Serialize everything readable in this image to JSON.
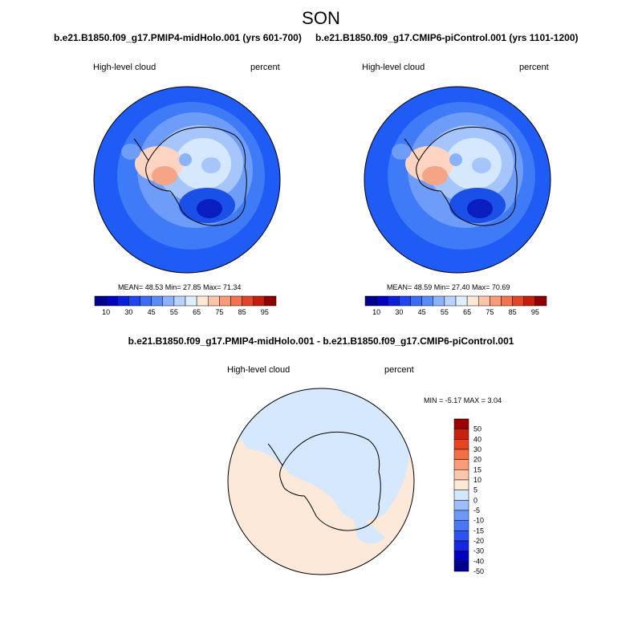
{
  "figure": {
    "season": "SON",
    "panels": [
      {
        "title": "b.e21.B1850.f09_g17.PMIP4-midHolo.001 (yrs 601-700)",
        "variable": "High-level cloud",
        "units": "percent",
        "stats": "MEAN=  48.53  Min=  27.85  Max=  71.34"
      },
      {
        "title": "b.e21.B1850.f09_g17.CMIP6-piControl.001 (yrs 1101-1200)",
        "variable": "High-level cloud",
        "units": "percent",
        "stats": "MEAN=  48.59  Min=  27.40  Max=  70.69"
      }
    ],
    "diff": {
      "title": "b.e21.B1850.f09_g17.PMIP4-midHolo.001 - b.e21.B1850.f09_g17.CMIP6-piControl.001",
      "variable": "High-level cloud",
      "units": "percent",
      "stats": "MIN =  -5.17 MAX =   3.04"
    },
    "abs_colorbar": {
      "colors": [
        "#00008f",
        "#0000c0",
        "#0a1ee0",
        "#1f45f0",
        "#3b6cf7",
        "#5a8cf9",
        "#8cb2fb",
        "#b9d3fc",
        "#e0efff",
        "#ffe8d8",
        "#fcc5aa",
        "#f99b79",
        "#f3724f",
        "#e34627",
        "#c41c0d",
        "#8f0000"
      ],
      "tick_labels": [
        "10",
        "30",
        "45",
        "55",
        "65",
        "75",
        "85",
        "95"
      ]
    },
    "diff_colorbar": {
      "colors": [
        "#00008f",
        "#0000c0",
        "#1428e0",
        "#2d52ef",
        "#4a77f5",
        "#6e98f8",
        "#9dbdfb",
        "#d4e8fd",
        "#fee8d8",
        "#fdc7ab",
        "#f99c77",
        "#f36f47",
        "#e8441f",
        "#c9220c",
        "#9a0000"
      ],
      "tick_labels": [
        "50",
        "40",
        "30",
        "20",
        "15",
        "10",
        "5",
        "0",
        "-5",
        "-10",
        "-15",
        "-20",
        "-30",
        "-40",
        "-50"
      ]
    }
  }
}
